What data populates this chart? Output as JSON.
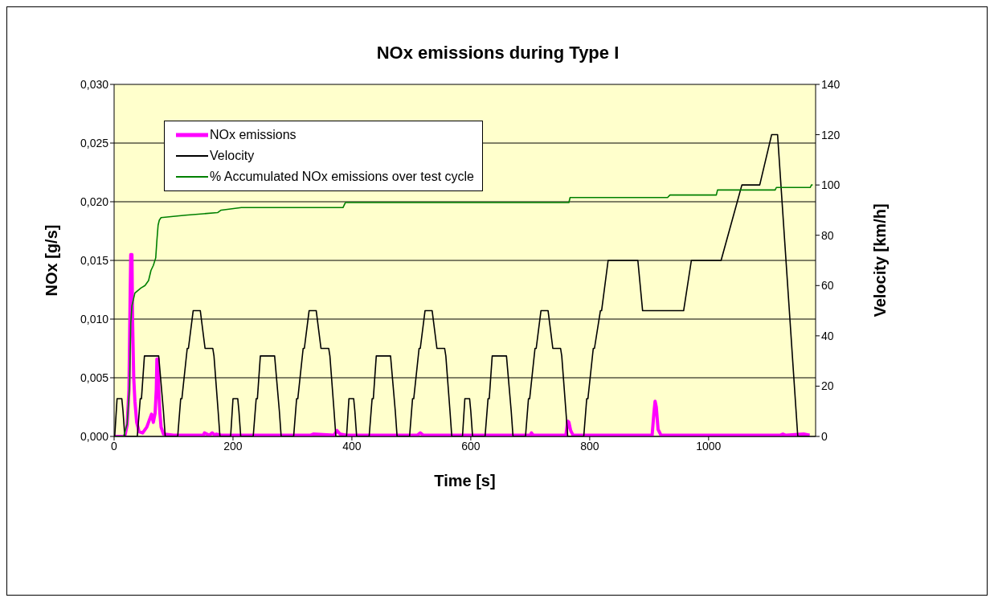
{
  "chart_data": {
    "type": "line",
    "title": "NOx emissions during Type I",
    "xlabel": "Time [s]",
    "ylabel": "NOx [g/s]",
    "y2label": "Velocity [km/h]",
    "xlim": [
      0,
      1180
    ],
    "xticks": [
      0,
      200,
      400,
      600,
      800,
      1000
    ],
    "ylim": [
      0,
      0.03
    ],
    "yticks": [
      {
        "value": 0,
        "label": "0,000"
      },
      {
        "value": 0.005,
        "label": "0,005"
      },
      {
        "value": 0.01,
        "label": "0,010"
      },
      {
        "value": 0.015,
        "label": "0,015"
      },
      {
        "value": 0.02,
        "label": "0,020"
      },
      {
        "value": 0.025,
        "label": "0,025"
      },
      {
        "value": 0.03,
        "label": "0,030"
      }
    ],
    "y2lim": [
      0,
      140
    ],
    "y2ticks": [
      0,
      20,
      40,
      60,
      80,
      100,
      120,
      140
    ],
    "grid": "y",
    "legend": "top left",
    "marker": "none",
    "series": [
      {
        "name": "NOx emissions",
        "color": "#ff00ff",
        "x": [
          0,
          18,
          22,
          25,
          27,
          28,
          30,
          31,
          33,
          35,
          38,
          42,
          48,
          55,
          60,
          63,
          66,
          69,
          71,
          72,
          74,
          75,
          77,
          79,
          83,
          100,
          150,
          152,
          160,
          165,
          170,
          172,
          180,
          230,
          300,
          330,
          335,
          370,
          375,
          380,
          390,
          450,
          510,
          515,
          520,
          600,
          700,
          702,
          705,
          760,
          763,
          765,
          768,
          772,
          800,
          850,
          905,
          908,
          910,
          912,
          915,
          920,
          1000,
          1120,
          1125,
          1130,
          1160,
          1170
        ],
        "values": [
          0,
          0,
          0.001,
          0.004,
          0.012,
          0.0155,
          0.0155,
          0.01,
          0.005,
          0.003,
          0.0012,
          0.0004,
          0.0003,
          0.0008,
          0.0015,
          0.0019,
          0.0012,
          0.002,
          0.004,
          0.0066,
          0.0066,
          0.004,
          0.002,
          0.0008,
          0.0002,
          0.0001,
          0.0001,
          0.0003,
          0.0001,
          0.0003,
          0.0001,
          0.0002,
          0.0001,
          0.0001,
          0.0001,
          0.0001,
          0.0002,
          0.0001,
          0.0005,
          0.0002,
          0.0001,
          0.0001,
          0.0001,
          0.0003,
          0.0001,
          0.0001,
          0.0001,
          0.0003,
          0.0001,
          0.0001,
          0.0013,
          0.0012,
          0.0005,
          0.0001,
          0.0001,
          0.0001,
          0.0001,
          0.002,
          0.003,
          0.0025,
          0.0006,
          0.0001,
          0.0001,
          0.0001,
          0.0002,
          0.0001,
          0.0002,
          0.0001
        ]
      },
      {
        "name": "Velocity",
        "color": "#000000",
        "axis": "y2",
        "x": [
          0,
          1,
          5,
          13,
          15,
          18,
          39,
          44,
          46,
          51,
          75,
          83,
          86,
          107,
          112,
          114,
          123,
          125,
          133,
          145,
          153,
          166,
          168,
          175,
          178,
          196,
          200,
          208,
          210,
          213,
          234,
          239,
          241,
          246,
          270,
          278,
          281,
          302,
          307,
          309,
          318,
          320,
          328,
          340,
          348,
          361,
          363,
          370,
          373,
          391,
          395,
          403,
          405,
          408,
          429,
          434,
          436,
          441,
          465,
          473,
          476,
          497,
          502,
          504,
          513,
          515,
          523,
          535,
          543,
          556,
          558,
          565,
          568,
          586,
          590,
          598,
          600,
          603,
          624,
          629,
          631,
          636,
          660,
          668,
          671,
          692,
          697,
          699,
          708,
          710,
          718,
          730,
          738,
          751,
          753,
          760,
          763,
          790,
          795,
          797,
          806,
          808,
          818,
          820,
          831,
          881,
          889,
          958,
          971,
          1021,
          1056,
          1086,
          1106,
          1116,
          1150,
          1170
        ],
        "values": [
          0,
          0,
          15,
          15,
          10,
          0,
          0,
          15,
          15,
          32,
          32,
          10,
          0,
          0,
          15,
          15,
          35,
          35,
          50,
          50,
          35,
          35,
          32,
          10,
          0,
          0,
          15,
          15,
          10,
          0,
          0,
          15,
          15,
          32,
          32,
          10,
          0,
          0,
          15,
          15,
          35,
          35,
          50,
          50,
          35,
          35,
          32,
          10,
          0,
          0,
          15,
          15,
          10,
          0,
          0,
          15,
          15,
          32,
          32,
          10,
          0,
          0,
          15,
          15,
          35,
          35,
          50,
          50,
          35,
          35,
          32,
          10,
          0,
          0,
          15,
          15,
          10,
          0,
          0,
          15,
          15,
          32,
          32,
          10,
          0,
          0,
          15,
          15,
          35,
          35,
          50,
          50,
          35,
          35,
          32,
          10,
          0,
          0,
          15,
          15,
          35,
          35,
          50,
          50,
          70,
          70,
          50,
          50,
          70,
          70,
          100,
          100,
          120,
          120,
          0,
          0
        ]
      },
      {
        "name": "% Accumulated NOx emissions over test cycle",
        "color": "#008000",
        "axis": "y2",
        "x": [
          0,
          16,
          22,
          26,
          28,
          30,
          35,
          45,
          52,
          58,
          62,
          66,
          70,
          72,
          74,
          76,
          79,
          120,
          174,
          180,
          214,
          245,
          385,
          389,
          765,
          767,
          931,
          935,
          1013,
          1015,
          1112,
          1114,
          1171,
          1173,
          1175
        ],
        "values": [
          0,
          0,
          5,
          20,
          45,
          52,
          57,
          59,
          60,
          62,
          66,
          68,
          71,
          78,
          84,
          86,
          87,
          88,
          89,
          90,
          91,
          91,
          91,
          93,
          93,
          95,
          95,
          96,
          96,
          98,
          98,
          99,
          99,
          100,
          100
        ]
      }
    ]
  }
}
